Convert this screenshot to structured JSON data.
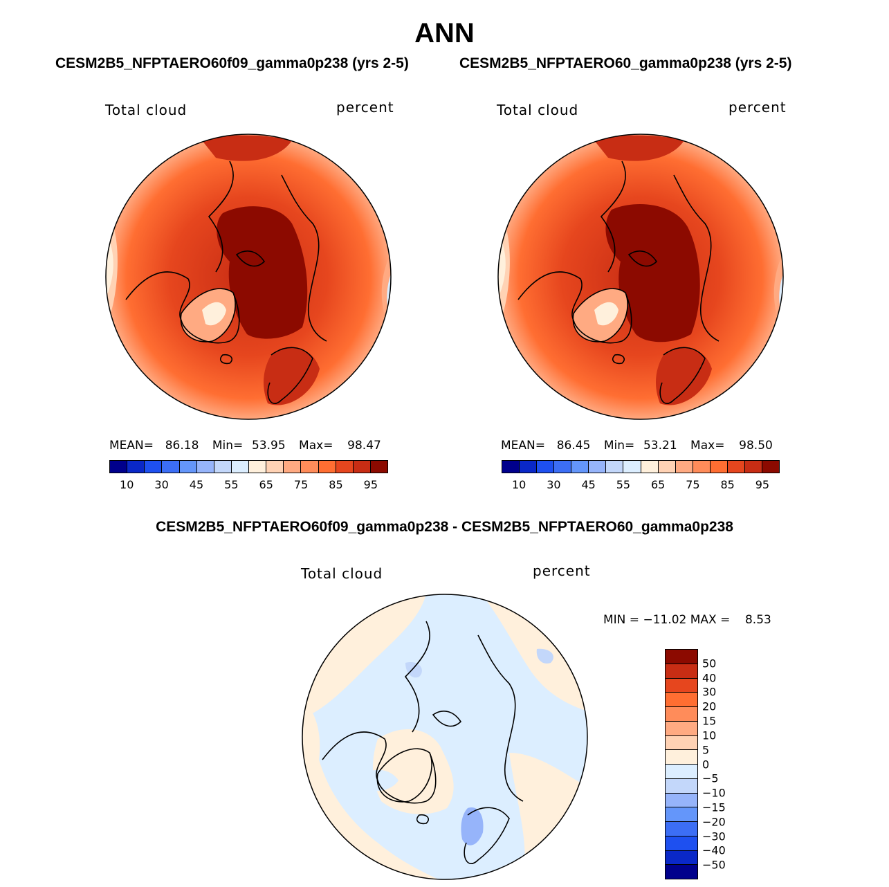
{
  "header": {
    "season": "ANN"
  },
  "panels": [
    {
      "case": "CESM2B5_NFPTAERO60f09_gamma0p238 (yrs 2-5)",
      "variable": "Total cloud",
      "units": "percent",
      "stats": {
        "mean_label": "MEAN=",
        "mean": "86.18",
        "min_label": "Min=",
        "min": "53.95",
        "max_label": "Max=",
        "max": "98.47"
      }
    },
    {
      "case": "CESM2B5_NFPTAERO60_gamma0p238 (yrs 2-5)",
      "variable": "Total cloud",
      "units": "percent",
      "stats": {
        "mean_label": "MEAN=",
        "mean": "86.45",
        "min_label": "Min=",
        "min": "53.21",
        "max_label": "Max=",
        "max": "98.50"
      }
    }
  ],
  "diff": {
    "title": "CESM2B5_NFPTAERO60f09_gamma0p238 - CESM2B5_NFPTAERO60_gamma0p238",
    "variable": "Total cloud",
    "units": "percent",
    "stats_text": "MIN = −11.02 MAX =    8.53"
  },
  "chart_data": [
    {
      "type": "heatmap",
      "projection": "north-polar-stereographic",
      "title": "CESM2B5_NFPTAERO60f09_gamma0p238 (yrs 2-5)",
      "field": "Total cloud",
      "units": "percent",
      "mean": 86.18,
      "min": 53.95,
      "max": 98.47,
      "colorbar": {
        "levels": [
          10,
          20,
          30,
          40,
          45,
          50,
          55,
          60,
          65,
          70,
          75,
          80,
          85,
          90,
          95
        ],
        "tick_labels": [
          "10",
          "30",
          "45",
          "55",
          "65",
          "75",
          "85",
          "95"
        ],
        "colors": [
          "#00008c",
          "#0a28c8",
          "#1e50f0",
          "#3c6ef5",
          "#6496fa",
          "#96b4fa",
          "#c3d7fa",
          "#dceeff",
          "#fff0dc",
          "#ffd2b4",
          "#ffaa82",
          "#ff8c5a",
          "#ff6e32",
          "#e6461e",
          "#c82d14",
          "#8c0a00"
        ]
      }
    },
    {
      "type": "heatmap",
      "projection": "north-polar-stereographic",
      "title": "CESM2B5_NFPTAERO60_gamma0p238 (yrs 2-5)",
      "field": "Total cloud",
      "units": "percent",
      "mean": 86.45,
      "min": 53.21,
      "max": 98.5,
      "colorbar": {
        "levels": [
          10,
          20,
          30,
          40,
          45,
          50,
          55,
          60,
          65,
          70,
          75,
          80,
          85,
          90,
          95
        ],
        "tick_labels": [
          "10",
          "30",
          "45",
          "55",
          "65",
          "75",
          "85",
          "95"
        ],
        "colors": [
          "#00008c",
          "#0a28c8",
          "#1e50f0",
          "#3c6ef5",
          "#6496fa",
          "#96b4fa",
          "#c3d7fa",
          "#dceeff",
          "#fff0dc",
          "#ffd2b4",
          "#ffaa82",
          "#ff8c5a",
          "#ff6e32",
          "#e6461e",
          "#c82d14",
          "#8c0a00"
        ]
      }
    },
    {
      "type": "heatmap",
      "projection": "north-polar-stereographic",
      "title": "CESM2B5_NFPTAERO60f09_gamma0p238 - CESM2B5_NFPTAERO60_gamma0p238",
      "field": "Total cloud",
      "units": "percent",
      "min": -11.02,
      "max": 8.53,
      "colorbar": {
        "levels": [
          50,
          40,
          30,
          20,
          15,
          10,
          5,
          0,
          -5,
          -10,
          -15,
          -20,
          -30,
          -40,
          -50
        ],
        "tick_labels": [
          "50",
          "40",
          "30",
          "20",
          "15",
          "10",
          "5",
          "0",
          "−5",
          "−10",
          "−15",
          "−20",
          "−30",
          "−40",
          "−50"
        ],
        "colors": [
          "#8c0a00",
          "#c82d14",
          "#e6461e",
          "#ff6e32",
          "#ff8c5a",
          "#ffaa82",
          "#ffd2b4",
          "#fff0dc",
          "#dceeff",
          "#c3d7fa",
          "#96b4fa",
          "#6496fa",
          "#3c6ef5",
          "#1e50f0",
          "#0a28c8",
          "#00008c"
        ]
      }
    }
  ]
}
